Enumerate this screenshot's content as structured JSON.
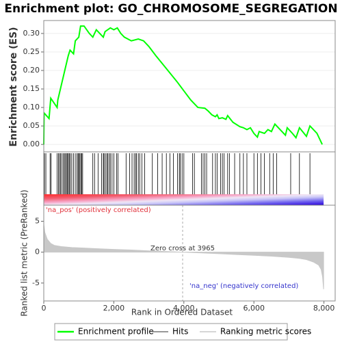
{
  "chart_data": [
    {
      "type": "line",
      "title": "Enrichment plot: GO_CHROMOSOME_SEGREGATION",
      "ylabel": "Enrichment score (ES)",
      "x": [
        0,
        10,
        150,
        200,
        380,
        400,
        500,
        600,
        700,
        750,
        850,
        900,
        1000,
        1050,
        1150,
        1300,
        1400,
        1500,
        1600,
        1700,
        1750,
        1900,
        2000,
        2100,
        2200,
        2300,
        2500,
        2700,
        2850,
        3000,
        3200,
        3500,
        3800,
        4000,
        4200,
        4400,
        4600,
        4700,
        4800,
        4900,
        4950,
        5000,
        5100,
        5200,
        5250,
        5400,
        5600,
        5700,
        5800,
        5900,
        6000,
        6100,
        6150,
        6300,
        6400,
        6500,
        6600,
        6800,
        6900,
        6950,
        7100,
        7200,
        7300,
        7500,
        7600,
        7800,
        7950
      ],
      "series": [
        {
          "name": "Enrichment profile",
          "color": "#00ff00",
          "values": [
            0.0,
            0.085,
            0.07,
            0.125,
            0.1,
            0.12,
            0.16,
            0.2,
            0.24,
            0.255,
            0.245,
            0.28,
            0.29,
            0.32,
            0.32,
            0.3,
            0.29,
            0.31,
            0.3,
            0.29,
            0.305,
            0.315,
            0.31,
            0.315,
            0.3,
            0.29,
            0.28,
            0.285,
            0.28,
            0.265,
            0.24,
            0.205,
            0.17,
            0.145,
            0.12,
            0.1,
            0.098,
            0.09,
            0.08,
            0.075,
            0.08,
            0.07,
            0.072,
            0.068,
            0.078,
            0.06,
            0.048,
            0.045,
            0.04,
            0.045,
            0.03,
            0.02,
            0.035,
            0.03,
            0.04,
            0.035,
            0.055,
            0.035,
            0.025,
            0.045,
            0.03,
            0.018,
            0.045,
            0.022,
            0.05,
            0.03,
            0.0
          ]
        }
      ],
      "xlim": [
        0,
        8320
      ],
      "ylim": [
        -0.02,
        0.335
      ],
      "yticks": [
        {
          "value": 0,
          "label": "0.00"
        },
        {
          "value": 0.05,
          "label": "0.05"
        },
        {
          "value": 0.1,
          "label": "0.10"
        },
        {
          "value": 0.15,
          "label": "0.15"
        },
        {
          "value": 0.2,
          "label": "0.20"
        },
        {
          "value": 0.25,
          "label": "0.25"
        },
        {
          "value": 0.3,
          "label": "0.30"
        }
      ],
      "grid": true
    },
    {
      "type": "hits",
      "series": [
        {
          "name": "Hits",
          "color": "#000000",
          "values": [
            20,
            60,
            180,
            210,
            380,
            420,
            450,
            480,
            520,
            560,
            590,
            620,
            650,
            680,
            700,
            730,
            760,
            800,
            850,
            900,
            950,
            980,
            1000,
            1030,
            1060,
            1080,
            1110,
            1400,
            1450,
            1550,
            1650,
            1700,
            1720,
            1760,
            1800,
            1830,
            1870,
            1900,
            1950,
            2000,
            2080,
            2120,
            2350,
            2450,
            2520,
            2580,
            2620,
            2650,
            2700,
            2740,
            2800,
            2880,
            3100,
            3250,
            3380,
            3500,
            3600,
            3700,
            3820,
            3870,
            3900,
            3950,
            4000,
            4250,
            4300,
            4500,
            4550,
            4600,
            4650,
            4820,
            4900,
            4950,
            5050,
            5100,
            5150,
            5250,
            5300,
            5450,
            5600,
            5700,
            5800,
            6000,
            6100,
            6200,
            6300,
            6450,
            6550,
            6650,
            7050,
            7300,
            7600
          ]
        }
      ],
      "xlim": [
        0,
        8320
      ]
    },
    {
      "type": "area",
      "xlabel": "Rank in Ordered Dataset",
      "ylabel": "Ranked list metric (PreRanked)",
      "x": [
        0,
        30,
        100,
        200,
        300,
        500,
        800,
        1200,
        1600,
        2000,
        2500,
        3000,
        3500,
        3965,
        4500,
        5000,
        5500,
        6000,
        6500,
        7000,
        7300,
        7500,
        7700,
        7850,
        7920,
        7960,
        7990
      ],
      "series": [
        {
          "name": "Ranking metric scores",
          "color": "#c8c8c8",
          "values": [
            4.5,
            3.2,
            2.1,
            1.4,
            1.1,
            0.9,
            0.75,
            0.65,
            0.55,
            0.45,
            0.35,
            0.22,
            0.1,
            0.0,
            -0.12,
            -0.25,
            -0.38,
            -0.5,
            -0.65,
            -0.85,
            -1.0,
            -1.2,
            -1.6,
            -2.1,
            -2.8,
            -4.0,
            -6.0
          ]
        }
      ],
      "xlim": [
        0,
        8320
      ],
      "ylim": [
        -7.9,
        7.6
      ],
      "yticks": [
        -5,
        0,
        5
      ],
      "xticks": [
        0,
        {
          "value": 2000,
          "label": "2,000"
        },
        {
          "value": 4000,
          "label": "4,000"
        },
        {
          "value": 6000,
          "label": "6,000"
        },
        {
          "value": 8000,
          "label": "8,000"
        }
      ],
      "zero_cross": 3965,
      "annotations": [
        "'na_pos' (positively correlated)",
        "Zero cross at 3965",
        "'na_neg' (negatively correlated)"
      ]
    }
  ]
}
